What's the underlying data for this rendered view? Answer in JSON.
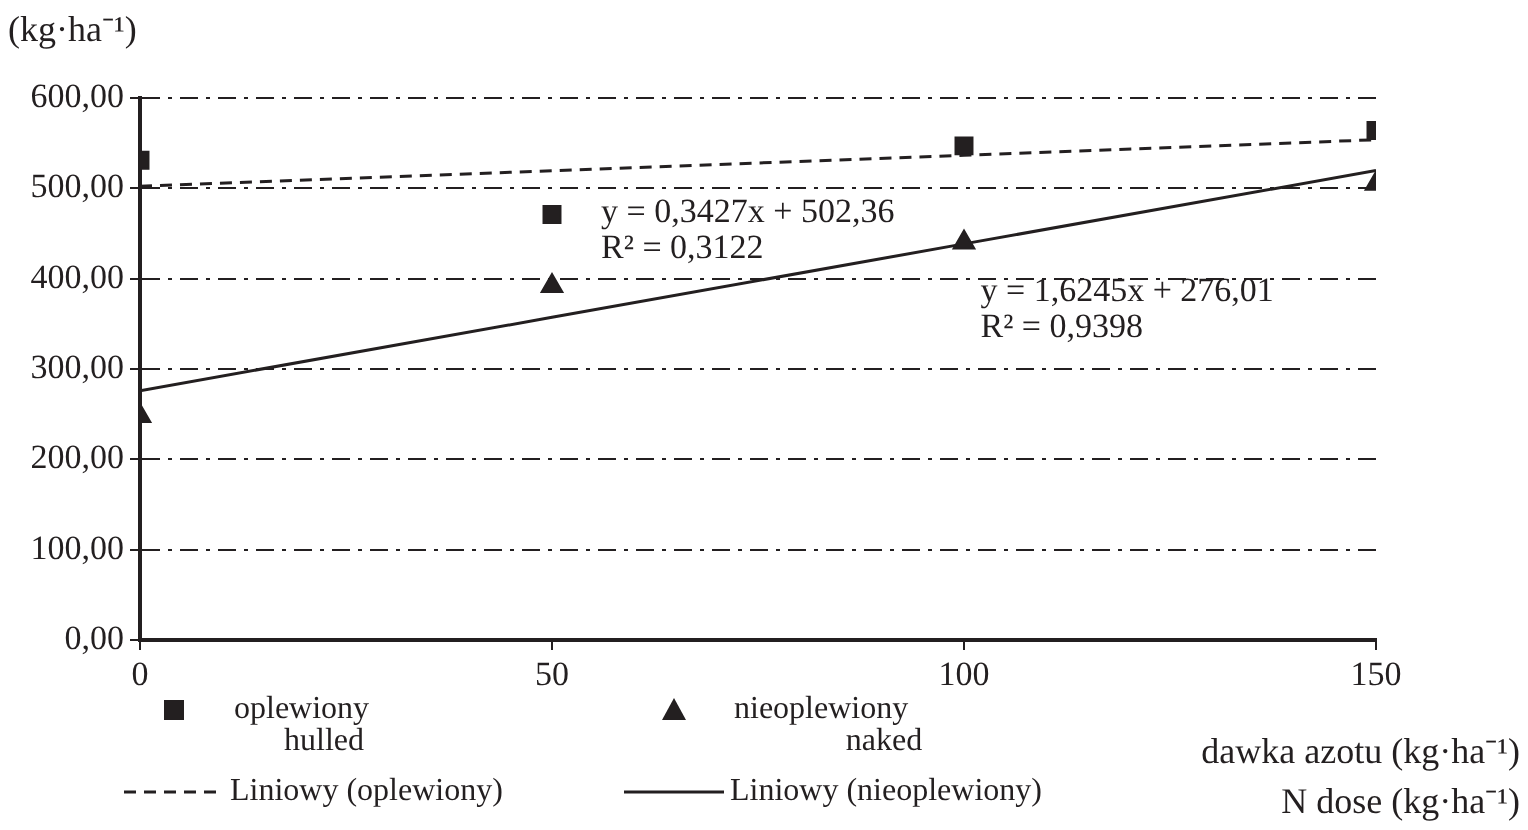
{
  "chart_data": {
    "type": "scatter",
    "ylabel": "(kg·ha⁻¹)",
    "xlabel": "dawka azotu (kg·ha⁻¹)\nN dose (kg·ha⁻¹)",
    "x": [
      0,
      50,
      100,
      150
    ],
    "series": [
      {
        "name": "oplewiony\nhulled",
        "type": "scatter",
        "color": "#231f20",
        "marker": "square",
        "values": [
          531,
          471,
          547,
          564
        ]
      },
      {
        "name": "nieoplewiony\nnaked",
        "type": "scatter",
        "color": "#231f20",
        "marker": "triangle",
        "values": [
          248,
          392,
          440,
          505
        ]
      },
      {
        "name": "Liniowy (oplewiony)",
        "type": "line",
        "color": "#231f20",
        "line_style": "dashed",
        "marker": "none",
        "values": [
          502.4,
          519.5,
          536.6,
          553.8
        ]
      },
      {
        "name": "Liniowy (nieoplewiony)",
        "type": "line",
        "color": "#231f20",
        "line_style": "solid",
        "marker": "none",
        "values": [
          276.0,
          357.2,
          438.5,
          519.7
        ]
      }
    ],
    "xlim": [
      0,
      150
    ],
    "xticks": [
      0,
      50,
      100,
      150
    ],
    "ylim": [
      0,
      600
    ],
    "yticks": [
      {
        "value": 0,
        "label": "0,00"
      },
      {
        "value": 100,
        "label": "100,00"
      },
      {
        "value": 200,
        "label": "200,00"
      },
      {
        "value": 300,
        "label": "300,00"
      },
      {
        "value": 400,
        "label": "400,00"
      },
      {
        "value": 500,
        "label": "500,00"
      },
      {
        "value": 600,
        "label": "600,00"
      }
    ],
    "grid": "y",
    "legend": "bottom",
    "annotations": [
      "y = 0,3427x + 502,36\nR² = 0,3122",
      "y = 1,6245x + 276,01\nR² = 0,9398"
    ]
  }
}
